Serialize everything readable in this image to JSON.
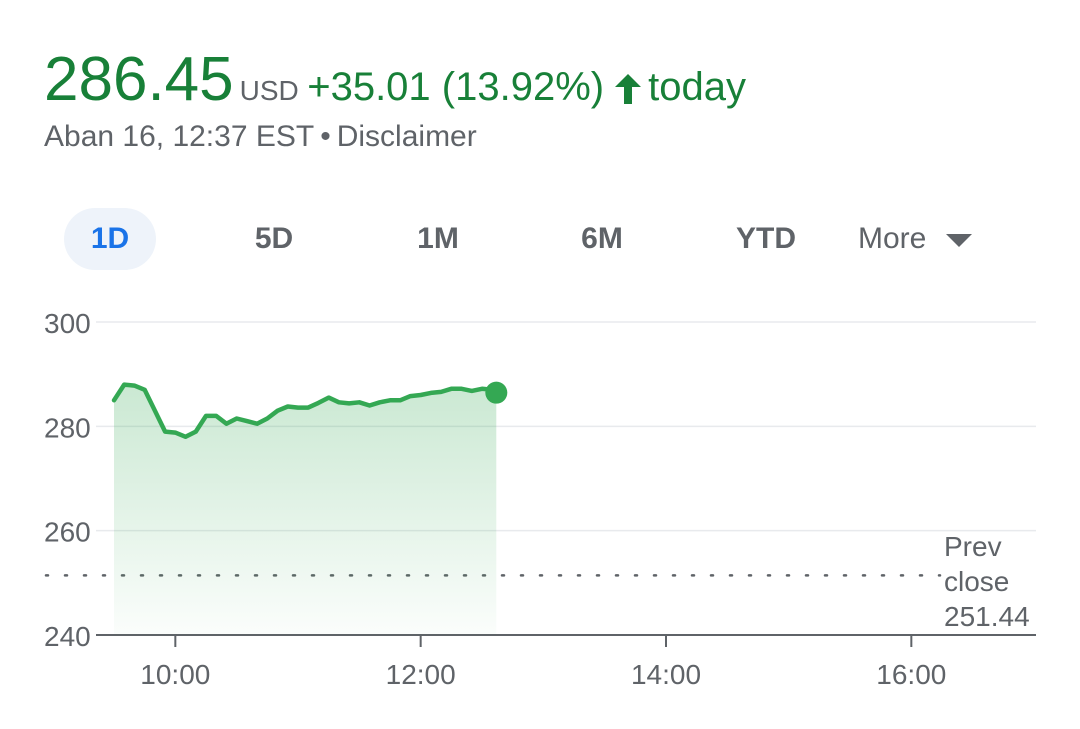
{
  "quote": {
    "price": "286.45",
    "currency": "USD",
    "change": "+35.01 (13.92%)",
    "period": "today",
    "timestamp": "Aban 16, 12:37 EST",
    "separator": "•",
    "disclaimer": "Disclaimer",
    "color_up": "#188038",
    "line_color": "#34a853",
    "arrow_icon": "arrow-up-icon"
  },
  "tabs": [
    {
      "label": "1D",
      "active": true
    },
    {
      "label": "5D",
      "active": false
    },
    {
      "label": "1M",
      "active": false
    },
    {
      "label": "6M",
      "active": false
    },
    {
      "label": "YTD",
      "active": false
    }
  ],
  "more": {
    "label": "More",
    "icon": "caret-down-icon"
  },
  "chart_data": {
    "type": "line",
    "x_unit": "time of day",
    "y_ticks": [
      "300",
      "280",
      "260",
      "240"
    ],
    "x_ticks": [
      "10:00",
      "12:00",
      "14:00",
      "16:00"
    ],
    "ylim": [
      240,
      300
    ],
    "xlim": [
      "9:30",
      "17:00"
    ],
    "prev_close_lines": [
      "Prev",
      "close",
      "251.44"
    ],
    "prev_close": 251.44,
    "series": [
      {
        "x": [
          "9:30",
          "9:35",
          "9:40",
          "9:45",
          "9:50",
          "9:55",
          "10:00",
          "10:05",
          "10:10",
          "10:15",
          "10:20",
          "10:25",
          "10:30",
          "10:35",
          "10:40",
          "10:45",
          "10:50",
          "10:55",
          "11:00",
          "11:05",
          "11:10",
          "11:15",
          "11:20",
          "11:25",
          "11:30",
          "11:35",
          "11:40",
          "11:45",
          "11:50",
          "11:55",
          "12:00",
          "12:05",
          "12:10",
          "12:15",
          "12:20",
          "12:25",
          "12:30",
          "12:35",
          "12:37"
        ],
        "y": [
          285,
          288,
          287.8,
          287,
          283,
          279,
          278.8,
          278,
          279,
          282,
          282,
          280.5,
          281.5,
          281,
          280.5,
          281.5,
          283,
          283.8,
          283.6,
          283.6,
          284.5,
          285.5,
          284.6,
          284.4,
          284.6,
          284,
          284.6,
          285,
          285,
          285.8,
          286,
          286.4,
          286.6,
          287.2,
          287.2,
          286.8,
          287.2,
          287,
          286.45
        ]
      }
    ],
    "grid": true
  }
}
